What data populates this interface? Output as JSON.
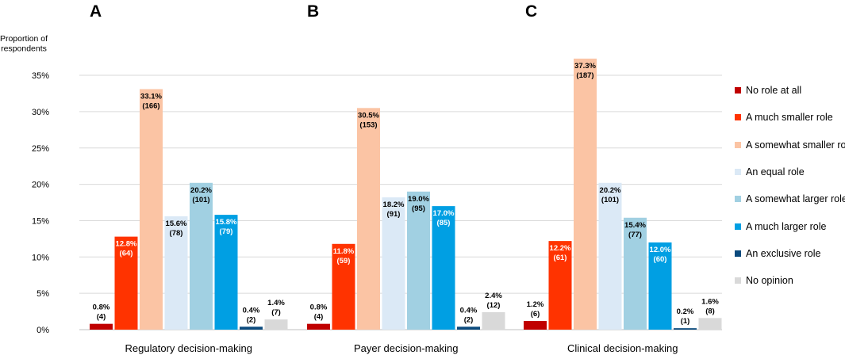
{
  "chart_data": {
    "type": "bar",
    "ylabel": "Proportion of\nrespondents",
    "ylim": [
      0,
      35
    ],
    "yticks": [
      0,
      5,
      10,
      15,
      20,
      25,
      30,
      35
    ],
    "ytick_suffix": "%",
    "grid": true,
    "legend_position": "right",
    "series_names": [
      "No role at all",
      "A much smaller role",
      "A somewhat smaller role",
      "An equal role",
      "A somewhat larger role",
      "A much larger role",
      "An exclusive role",
      "No opinion"
    ],
    "series_colors": [
      "#c00000",
      "#ff3300",
      "#fbc4a4",
      "#dbe9f6",
      "#a1d0e2",
      "#009fe3",
      "#0a4a7d",
      "#d9d9d9"
    ],
    "label_text_colors": [
      "#000000",
      "#ffffff",
      "#000000",
      "#000000",
      "#000000",
      "#ffffff",
      "#000000",
      "#000000"
    ],
    "panels": [
      {
        "letter": "A",
        "category": "Regulatory decision-making",
        "values": [
          0.8,
          12.8,
          33.1,
          15.6,
          20.2,
          15.8,
          0.4,
          1.4
        ],
        "labels": [
          "0.8%",
          "12.8%",
          "33.1%",
          "15.6%",
          "20.2%",
          "15.8%",
          "0.4%",
          "1.4%"
        ],
        "counts": [
          "(4)",
          "(64)",
          "(166)",
          "(78)",
          "(101)",
          "(79)",
          "(2)",
          "(7)"
        ]
      },
      {
        "letter": "B",
        "category": "Payer decision-making",
        "values": [
          0.8,
          11.8,
          30.5,
          18.2,
          19.0,
          17.0,
          0.4,
          2.4
        ],
        "labels": [
          "0.8%",
          "11.8%",
          "30.5%",
          "18.2%",
          "19.0%",
          "17.0%",
          "0.4%",
          "2.4%"
        ],
        "counts": [
          "(4)",
          "(59)",
          "(153)",
          "(91)",
          "(95)",
          "(85)",
          "(2)",
          "(12)"
        ]
      },
      {
        "letter": "C",
        "category": "Clinical decision-making",
        "values": [
          1.2,
          12.2,
          37.3,
          20.2,
          15.4,
          12.0,
          0.2,
          1.6
        ],
        "labels": [
          "1.2%",
          "12.2%",
          "37.3%",
          "20.2%",
          "15.4%",
          "12.0%",
          "0.2%",
          "1.6%"
        ],
        "counts": [
          "(6)",
          "(61)",
          "(187)",
          "(101)",
          "(77)",
          "(60)",
          "(1)",
          "(8)"
        ]
      }
    ]
  }
}
